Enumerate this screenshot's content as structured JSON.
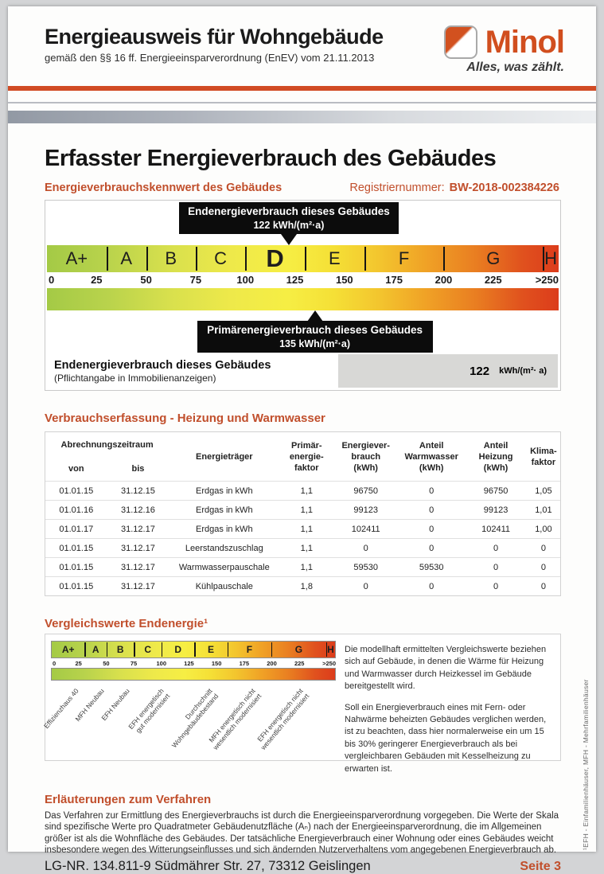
{
  "colors": {
    "accent": "#c14f2c",
    "logo_orange": "#d14e1e",
    "callout_bg": "#0c0c0c"
  },
  "header": {
    "title": "Energieausweis für Wohngebäude",
    "subtitle": "gemäß den §§ 16 ff. Energieeinsparverordnung (EnEV) vom 21.11.2013",
    "logo_text": "Minol",
    "logo_tagline": "Alles, was zählt."
  },
  "section": {
    "title": "Erfasster Energieverbrauch des Gebäudes",
    "kennwert_label": "Energieverbrauchskennwert des Gebäudes",
    "registration_label": "Registriernummer:",
    "registration_value": "BW-2018-002384226"
  },
  "scale": {
    "max": 258,
    "classes": [
      {
        "letter": "A+",
        "from": 0,
        "to": 30
      },
      {
        "letter": "A",
        "from": 30,
        "to": 50
      },
      {
        "letter": "B",
        "from": 50,
        "to": 75
      },
      {
        "letter": "C",
        "from": 75,
        "to": 100
      },
      {
        "letter": "D",
        "from": 100,
        "to": 130,
        "highlight": true
      },
      {
        "letter": "E",
        "from": 130,
        "to": 160
      },
      {
        "letter": "F",
        "from": 160,
        "to": 200
      },
      {
        "letter": "G",
        "from": 200,
        "to": 250
      },
      {
        "letter": "H",
        "from": 250,
        "to": 258
      }
    ],
    "ticks": [
      {
        "label": "0",
        "value": 0
      },
      {
        "label": "25",
        "value": 25
      },
      {
        "label": "50",
        "value": 50
      },
      {
        "label": "75",
        "value": 75
      },
      {
        "label": "100",
        "value": 100
      },
      {
        "label": "125",
        "value": 125
      },
      {
        "label": "150",
        "value": 150
      },
      {
        "label": "175",
        "value": 175
      },
      {
        "label": "200",
        "value": 200
      },
      {
        "label": "225",
        "value": 225
      },
      {
        "label": ">250",
        "value": 250
      }
    ],
    "end_energy_callout": {
      "title": "Endenergieverbrauch dieses Gebäudes",
      "value_text": "122 kWh/(m²·a)",
      "value": 122
    },
    "primary_energy_callout": {
      "title": "Primärenergieverbrauch dieses Gebäudes",
      "value_text": "135 kWh/(m²·a)",
      "value": 135
    },
    "result": {
      "title": "Endenergieverbrauch dieses Gebäudes",
      "subtitle": "(Pflichtangabe in Immobilienanzeigen)",
      "value": "122",
      "unit": "kWh/(m²· a)"
    }
  },
  "consumption": {
    "title": "Verbrauchserfassung - Heizung und Warmwasser",
    "headers": {
      "period": "Abrechnungszeitraum",
      "from": "von",
      "to": "bis",
      "carrier": "Energieträger",
      "primary": "Primär-\nenergie-\nfaktor",
      "consumption": "Energiever-\nbrauch\n(kWh)",
      "hot_water": "Anteil\nWarmwasser\n(kWh)",
      "heating": "Anteil\nHeizung\n(kWh)",
      "climate": "Klima-\nfaktor"
    },
    "rows": [
      [
        "01.01.15",
        "31.12.15",
        "Erdgas in kWh",
        "1,1",
        "96750",
        "0",
        "96750",
        "1,05"
      ],
      [
        "01.01.16",
        "31.12.16",
        "Erdgas in kWh",
        "1,1",
        "99123",
        "0",
        "99123",
        "1,01"
      ],
      [
        "01.01.17",
        "31.12.17",
        "Erdgas in kWh",
        "1,1",
        "102411",
        "0",
        "102411",
        "1,00"
      ],
      [
        "01.01.15",
        "31.12.17",
        "Leerstandszuschlag",
        "1,1",
        "0",
        "0",
        "0",
        "0"
      ],
      [
        "01.01.15",
        "31.12.17",
        "Warmwasserpauschale",
        "1,1",
        "59530",
        "59530",
        "0",
        "0"
      ],
      [
        "01.01.15",
        "31.12.17",
        "Kühlpauschale",
        "1,8",
        "0",
        "0",
        "0",
        "0"
      ]
    ]
  },
  "comparison": {
    "title": "Vergleichswerte Endenergie¹",
    "labels": [
      {
        "text": "Effizienzhaus 40",
        "pct": 8
      },
      {
        "text": "MFH Neubau",
        "pct": 17
      },
      {
        "text": "EFH Neubau",
        "pct": 26
      },
      {
        "text": "EFH energetisch\ngut modernisiert",
        "pct": 38
      },
      {
        "text": "Durchschnitt\nWohngebäudebestand",
        "pct": 55
      },
      {
        "text": "MFH energetisch nicht\nwesentlich modernisiert",
        "pct": 70
      },
      {
        "text": "EFH energetisch nicht\nwesentlich modernisiert",
        "pct": 87
      }
    ],
    "paragraphs": [
      "Die modellhaft ermittelten Vergleichswerte beziehen sich auf Gebäude, in denen die Wärme für Heizung und Warmwasser durch Heizkessel im Gebäude bereitgestellt wird.",
      "Soll ein Energieverbrauch eines mit Fern- oder Nahwärme beheizten Gebäudes verglichen werden, ist zu beachten, dass hier normalerweise ein um 15 bis 30% geringerer Energieverbrauch als bei vergleichbaren Gebäuden mit Kesselheizung zu erwarten ist.",
      ""
    ],
    "footnote": "¹EFH - Einfamilienhäuser, MFH - Mehrfamilienhäuser"
  },
  "explanation": {
    "title": "Erläuterungen zum Verfahren",
    "body": "Das Verfahren zur Ermittlung des Energieverbrauchs ist durch die Energieeinsparverordnung vorgegeben. Die Werte der Skala sind spezifische Werte pro Quadratmeter Gebäudenutzfläche (Aₙ) nach der Energieeinsparverordnung, die im Allgemeinen größer ist als die Wohnfläche des Gebäudes. Der tatsächliche Energieverbrauch einer Wohnung oder eines Gebäudes weicht insbesondere wegen des Witterungseinflusses und sich ändernden Nutzerverhaltens vom angegebenen Energieverbrauch ab."
  },
  "footer": {
    "left": "LG-NR. 134.811-9 Südmährer Str. 27, 73312 Geislingen",
    "page": "Seite 3"
  }
}
